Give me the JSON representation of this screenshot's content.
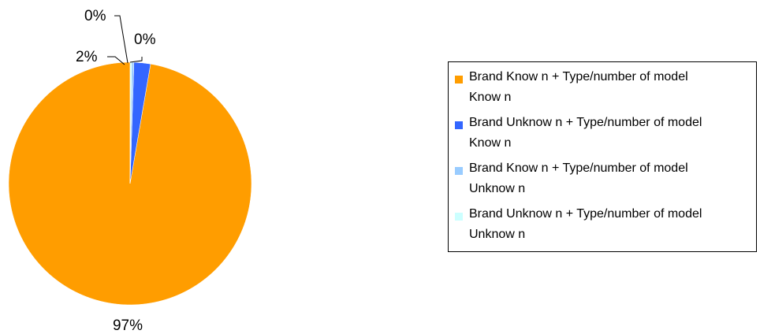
{
  "chart_data": {
    "type": "pie",
    "slices": [
      {
        "label": "Brand Known + Type/number of model Known",
        "value": 97.3,
        "display": "97%",
        "color": "#FF9D00"
      },
      {
        "label": "Brand Unknown + Type/number of model Known",
        "value": 2.2,
        "display": "2%",
        "color": "#3366FF"
      },
      {
        "label": "Brand Known + Type/number of model Unknown",
        "value": 0.3,
        "display": "0%",
        "color": "#99CCFF"
      },
      {
        "label": "Brand Unknown + Type/number of model Unknown",
        "value": 0.2,
        "display": "0%",
        "color": "#CCFFFF"
      }
    ],
    "legend": {
      "position": "right",
      "items": [
        {
          "line1": "Brand Know n + Type/number of model",
          "line2": "Know n",
          "color": "#FF9D00"
        },
        {
          "line1": "Brand Unknow n + Type/number of model",
          "line2": "Know n",
          "color": "#3366FF"
        },
        {
          "line1": "Brand Know n + Type/number of model",
          "line2": "Unknow n",
          "color": "#99CCFF"
        },
        {
          "line1": "Brand Unknow n + Type/number of model",
          "line2": "Unknow n",
          "color": "#CCFFFF"
        }
      ]
    }
  }
}
